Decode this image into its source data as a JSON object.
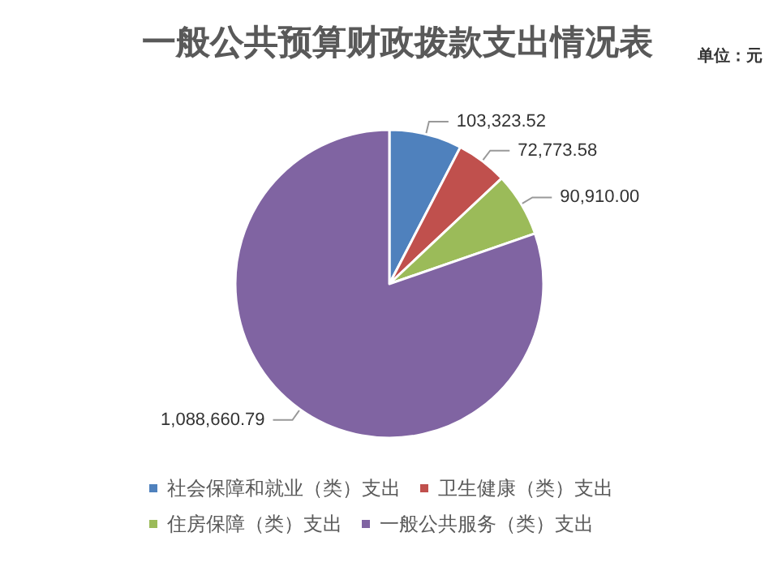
{
  "chart_data": {
    "type": "pie",
    "title": "一般公共预算财政拨款支出情况表",
    "annotations": [
      "单位：元"
    ],
    "categories": [
      "社会保障和就业（类）支出",
      "卫生健康（类）支出",
      "住房保障（类）支出",
      "一般公共服务（类）支出"
    ],
    "values": [
      103323.52,
      72773.58,
      90910.0,
      1088660.79
    ],
    "value_labels": [
      "103,323.52",
      "72,773.58",
      "90,910.00",
      "1,088,660.79"
    ],
    "colors": [
      "#4f81bd",
      "#c0504d",
      "#9bbb59",
      "#8064a2"
    ],
    "legend": "bottom"
  }
}
